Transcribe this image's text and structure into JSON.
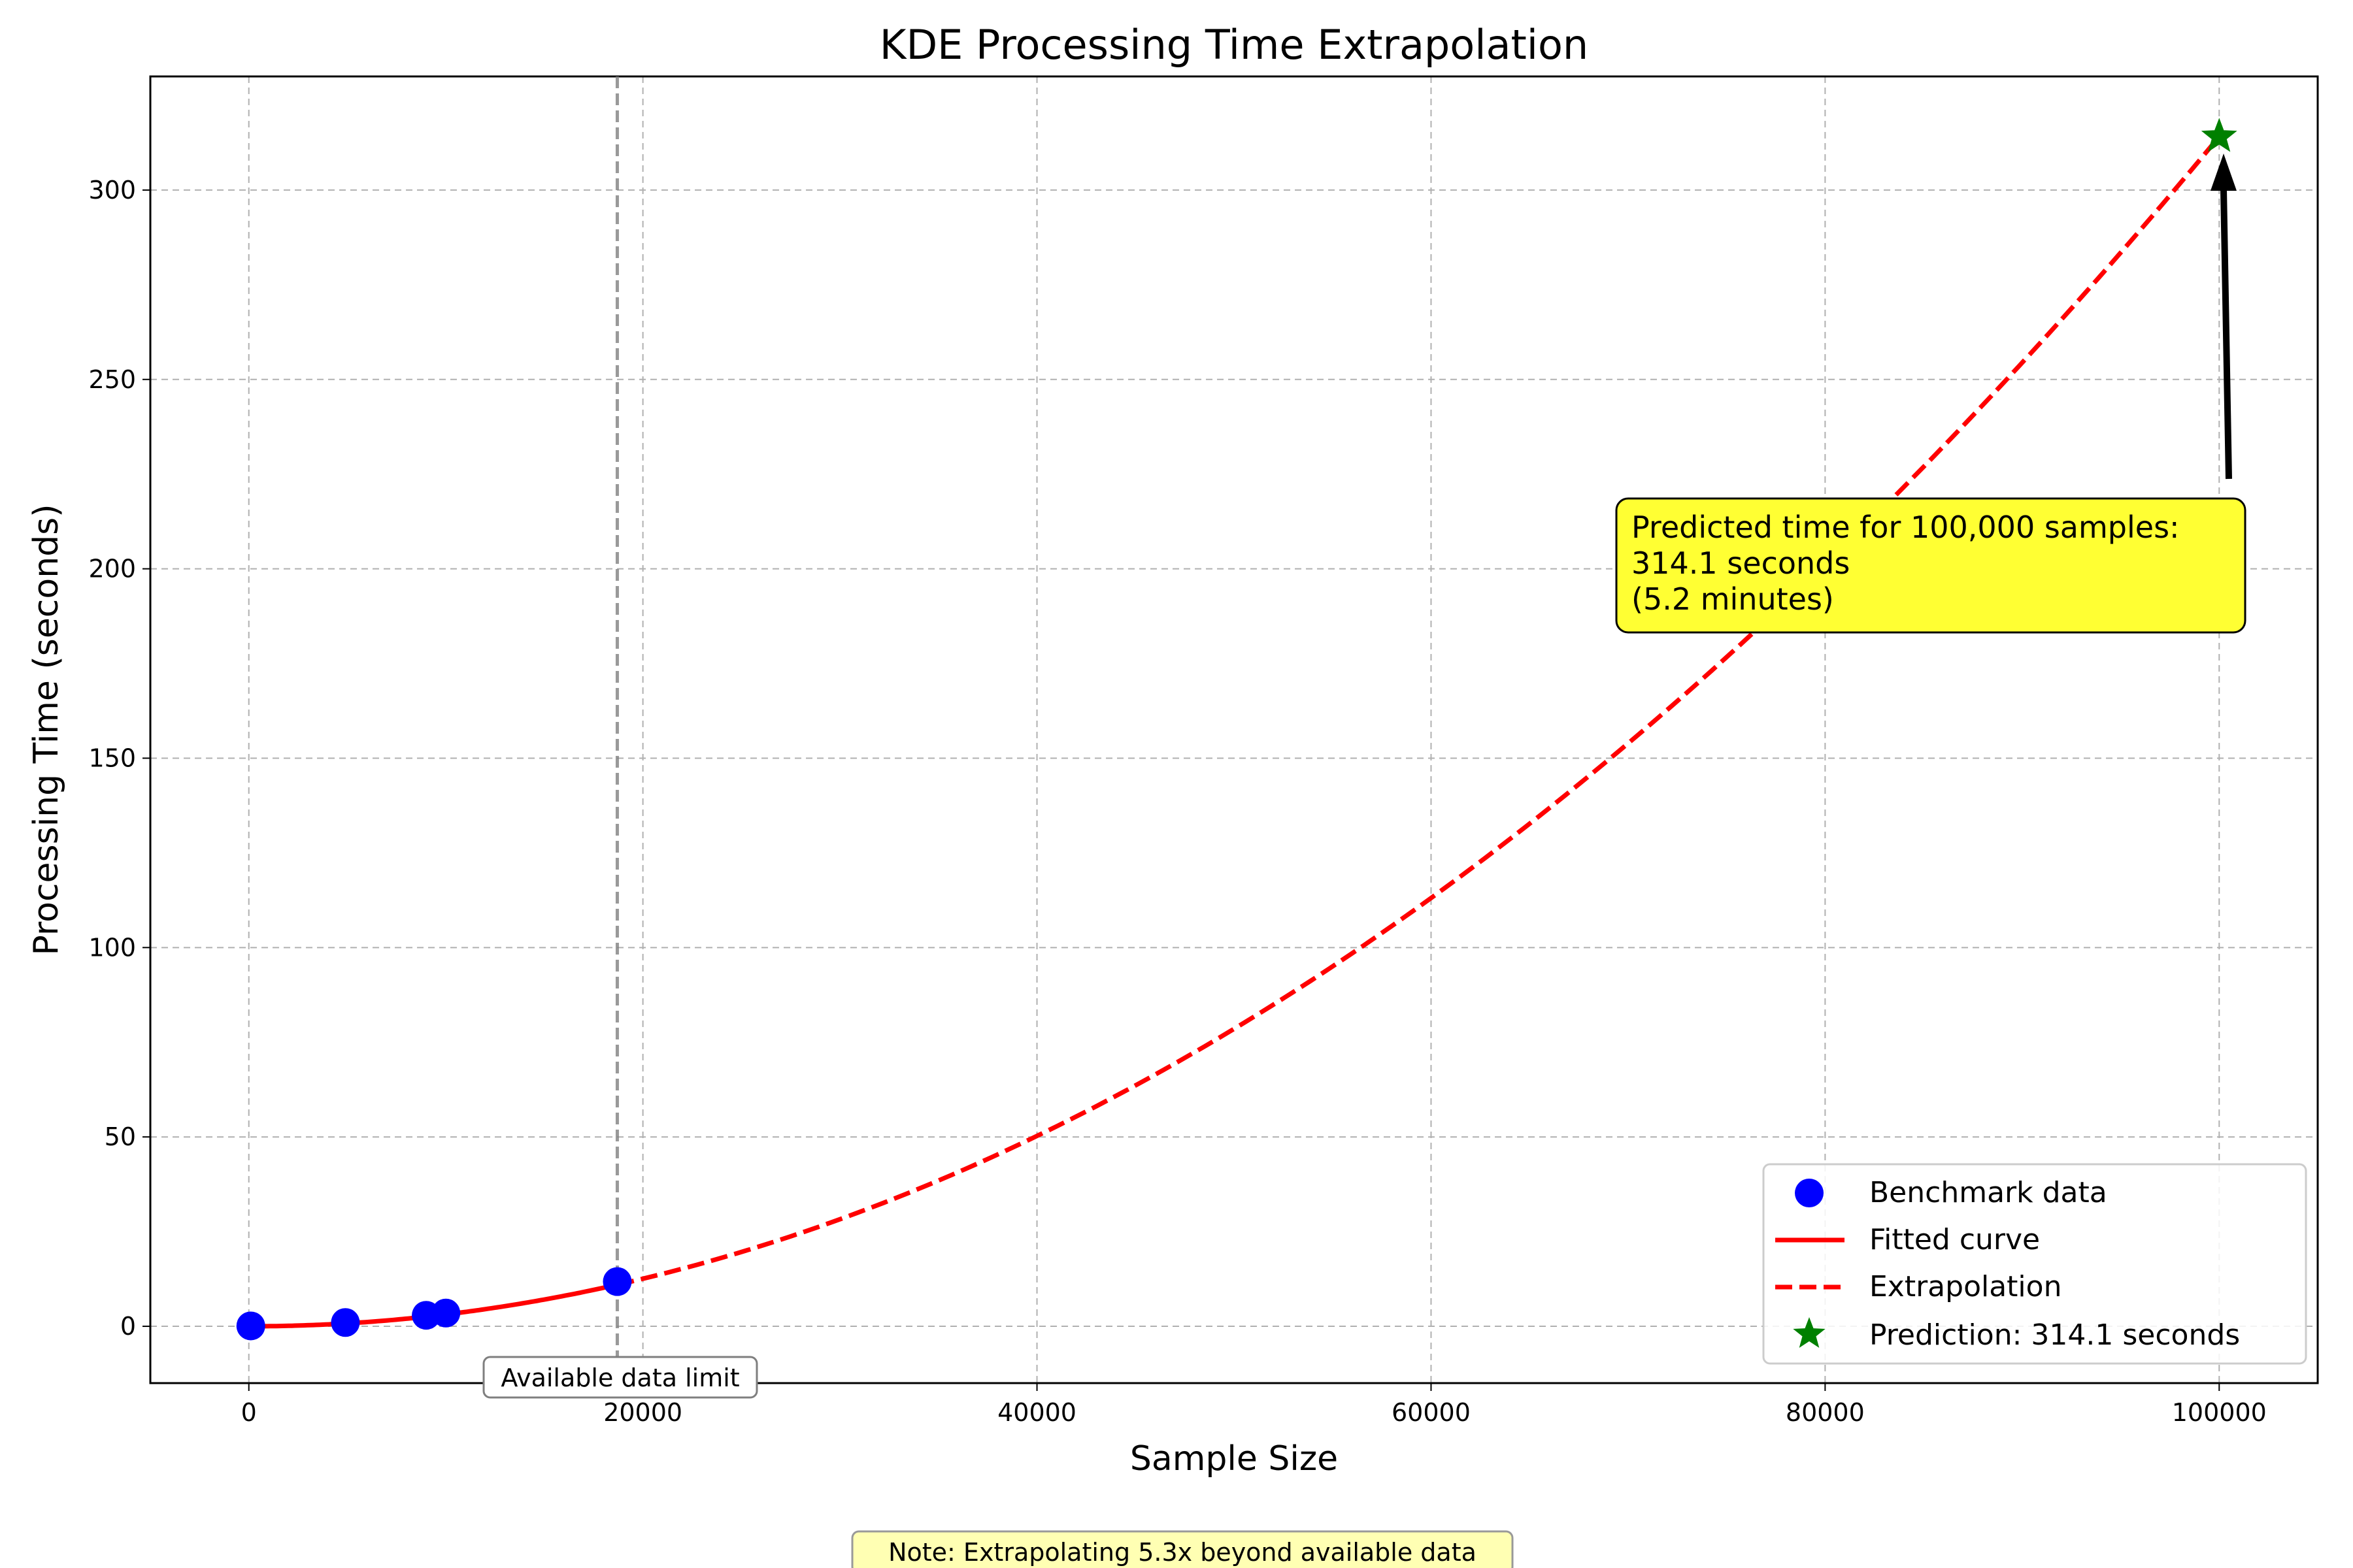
{
  "chart_data": {
    "type": "scatter",
    "title": "KDE Processing Time Extrapolation",
    "xlabel": "Sample Size",
    "ylabel": "Processing Time (seconds)",
    "xlim": [
      -5000,
      105000
    ],
    "ylim": [
      -15,
      330
    ],
    "xticks": [
      0,
      20000,
      40000,
      60000,
      80000,
      100000
    ],
    "xtick_labels": [
      "0",
      "20000",
      "40000",
      "60000",
      "80000",
      "100000"
    ],
    "yticks": [
      0,
      50,
      100,
      150,
      200,
      250,
      300
    ],
    "ytick_labels": [
      "0",
      "50",
      "100",
      "150",
      "200",
      "250",
      "300"
    ],
    "grid": true,
    "legend_position": "lower right",
    "benchmark": {
      "name": "Benchmark data",
      "color": "#0000ff",
      "x": [
        100,
        4900,
        9000,
        10000,
        18700
      ],
      "y": [
        0.1,
        1.0,
        2.9,
        3.5,
        11.8
      ]
    },
    "fitted_curve": {
      "name": "Fitted curve",
      "color": "#ff0000",
      "style": "solid",
      "x_range": [
        0,
        18700
      ],
      "coefficient": 3.141e-08,
      "exponent": 2
    },
    "extrapolation": {
      "name": "Extrapolation",
      "color": "#ff0000",
      "style": "dashed",
      "x_range": [
        18700,
        100000
      ]
    },
    "prediction": {
      "name": "Prediction: 314.1 seconds",
      "color": "#008000",
      "x": 100000,
      "y": 314.1
    },
    "data_limit": {
      "x": 18700,
      "label": "Available data limit"
    },
    "annotation": {
      "lines": [
        "Predicted time for 100,000 samples:",
        "314.1 seconds",
        "(5.2 minutes)"
      ],
      "box_color": "#ffff33"
    },
    "note": {
      "text": "Note: Extrapolating 5.3x beyond available data",
      "box_color": "#ffffb3"
    }
  }
}
